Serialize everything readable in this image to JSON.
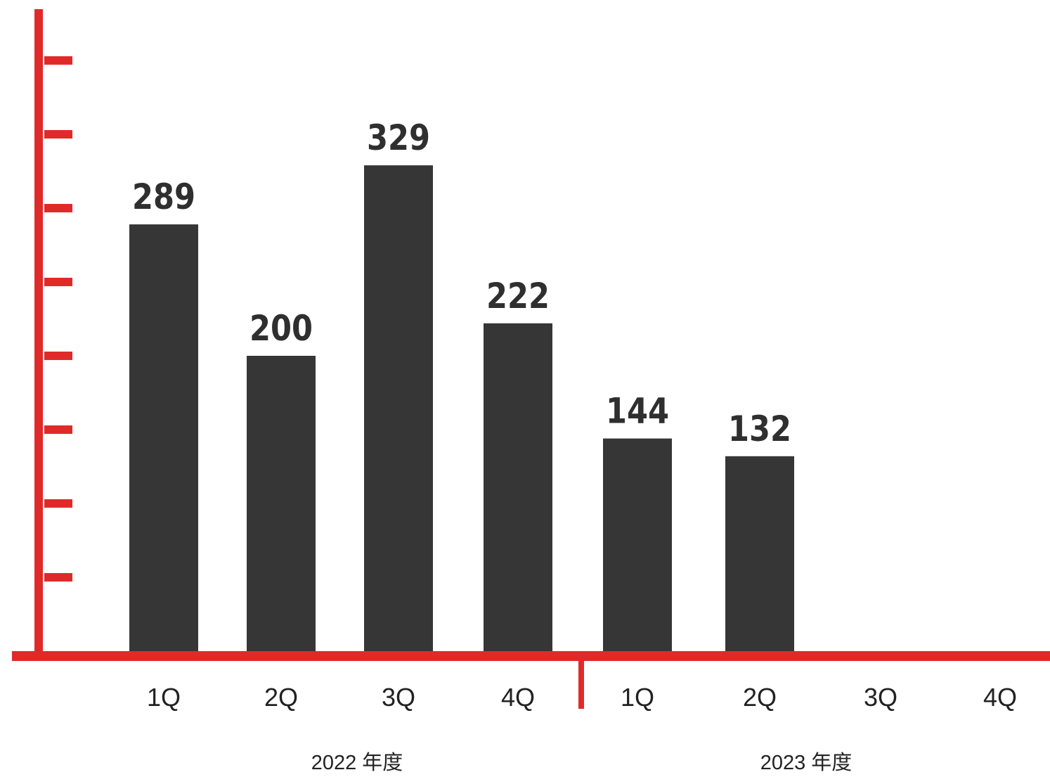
{
  "chart_data": {
    "type": "bar",
    "categories": [
      "1Q",
      "2Q",
      "3Q",
      "4Q",
      "1Q",
      "2Q",
      "3Q",
      "4Q"
    ],
    "groups": [
      {
        "label": "2022 年度",
        "categories": [
          "1Q",
          "2Q",
          "3Q",
          "4Q"
        ]
      },
      {
        "label": "2023 年度",
        "categories": [
          "1Q",
          "2Q",
          "3Q",
          "4Q"
        ]
      }
    ],
    "values": [
      289,
      200,
      329,
      222,
      144,
      132,
      null,
      null
    ],
    "value_labels": [
      "289",
      "200",
      "329",
      "222",
      "144",
      "132",
      "",
      ""
    ],
    "ylim": [
      0,
      400
    ],
    "y_ticks": [
      50,
      100,
      150,
      200,
      250,
      300,
      350,
      400
    ],
    "y_tick_labels_shown": false,
    "title": "",
    "xlabel": "",
    "ylabel": "",
    "grid": false,
    "colors": {
      "bar": "#363636",
      "axis": "#e02a2a",
      "label": "#2f2f2f"
    }
  }
}
